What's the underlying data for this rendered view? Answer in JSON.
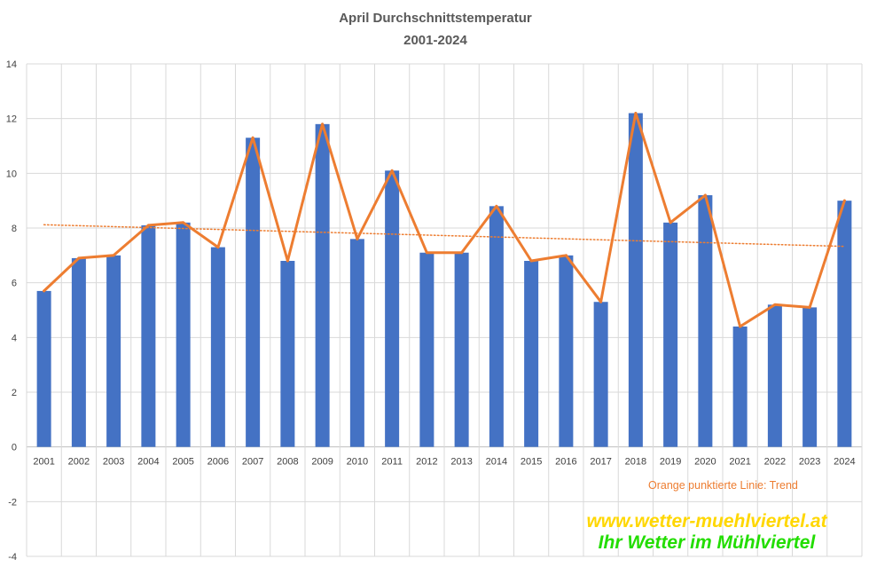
{
  "chart_data": {
    "type": "bar",
    "title": "April Durchschnittstemperatur",
    "subtitle": "2001-2024",
    "categories": [
      "2001",
      "2002",
      "2003",
      "2004",
      "2005",
      "2006",
      "2007",
      "2008",
      "2009",
      "2010",
      "2011",
      "2012",
      "2013",
      "2014",
      "2015",
      "2016",
      "2017",
      "2018",
      "2019",
      "2020",
      "2021",
      "2022",
      "2023",
      "2024"
    ],
    "series": [
      {
        "type": "bar",
        "color": "#4472c4",
        "values": [
          5.7,
          6.9,
          7.0,
          8.1,
          8.2,
          7.3,
          11.3,
          6.8,
          11.8,
          7.6,
          10.1,
          7.1,
          7.1,
          8.8,
          6.8,
          7.0,
          5.3,
          12.2,
          8.2,
          9.2,
          4.4,
          5.2,
          5.1,
          9.0
        ]
      },
      {
        "type": "line",
        "color": "#ed7d31",
        "values": [
          5.7,
          6.9,
          7.0,
          8.1,
          8.2,
          7.3,
          11.3,
          6.8,
          11.8,
          7.6,
          10.1,
          7.1,
          7.1,
          8.8,
          6.8,
          7.0,
          5.3,
          12.2,
          8.2,
          9.2,
          4.4,
          5.2,
          5.1,
          9.0
        ]
      }
    ],
    "trend": {
      "color": "#ed7d31",
      "style": "dotted",
      "start": 8.12,
      "end": 7.33
    },
    "ylim": [
      -4,
      14
    ],
    "yticks": [
      -4,
      -2,
      0,
      2,
      4,
      6,
      8,
      10,
      12,
      14
    ],
    "grid": true,
    "annotation": "Orange punktierte Linie: Trend"
  },
  "branding": {
    "url": "www.wetter-muehlviertel.at",
    "tagline": "Ihr Wetter im Mühlviertel",
    "url_color": "#ffd700",
    "tagline_color": "#22dd00"
  }
}
